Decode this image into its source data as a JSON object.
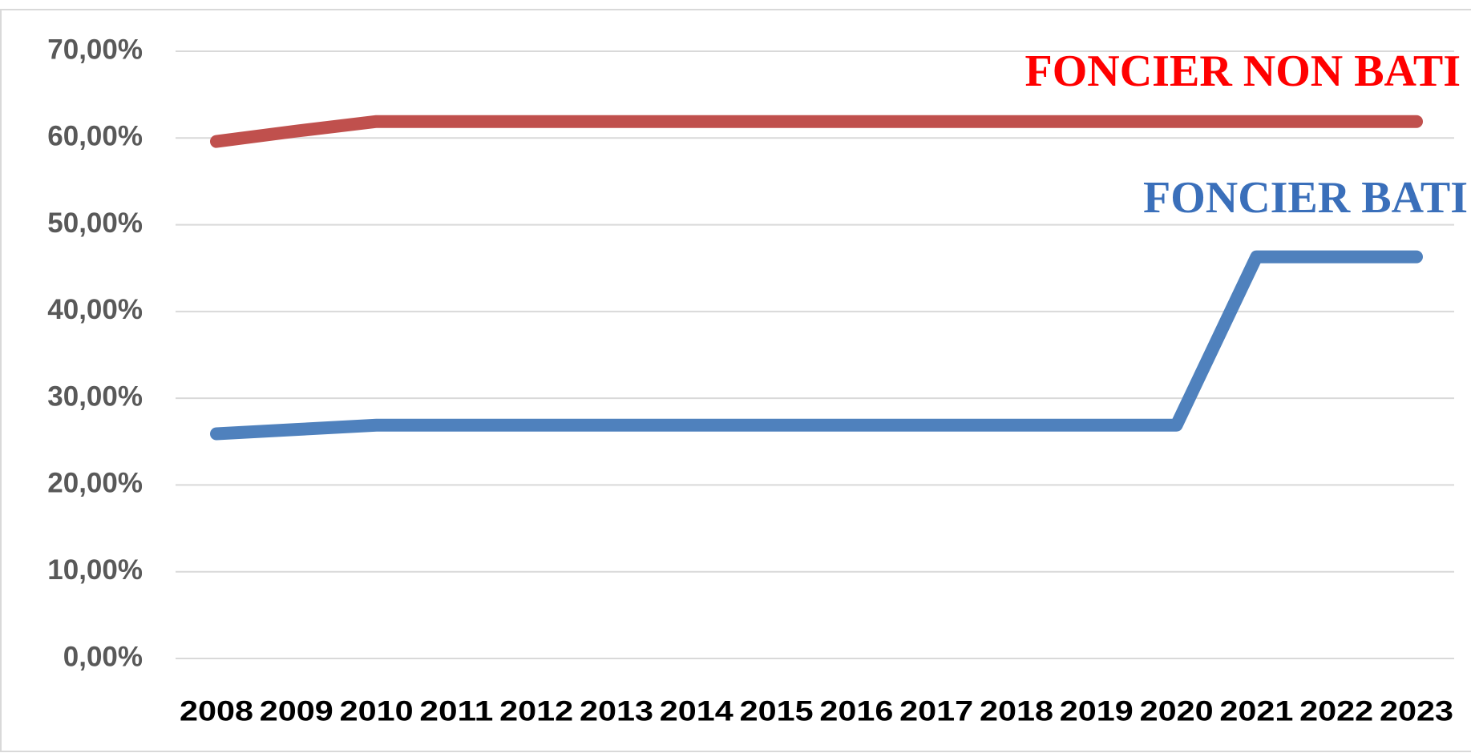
{
  "chart_data": {
    "type": "line",
    "categories": [
      "2008",
      "2009",
      "2010",
      "2011",
      "2012",
      "2013",
      "2014",
      "2015",
      "2016",
      "2017",
      "2018",
      "2019",
      "2020",
      "2021",
      "2022",
      "2023"
    ],
    "series": [
      {
        "name": "FONCIER NON BATI",
        "color": "#c0504d",
        "label_color": "#ff0000",
        "values": [
          59.6,
          60.8,
          61.9,
          61.9,
          61.9,
          61.9,
          61.9,
          61.9,
          61.9,
          61.9,
          61.9,
          61.9,
          61.9,
          61.9,
          61.9,
          61.9
        ]
      },
      {
        "name": "FONCIER BATI",
        "color": "#4f81bd",
        "label_color": "#3a6fba",
        "values": [
          25.9,
          26.4,
          26.9,
          26.9,
          26.9,
          26.9,
          26.9,
          26.9,
          26.9,
          26.9,
          26.9,
          26.9,
          26.9,
          46.3,
          46.3,
          46.3
        ]
      }
    ],
    "ylim": [
      0,
      70
    ],
    "yticks": [
      {
        "value": 0,
        "label": "0,00%"
      },
      {
        "value": 10,
        "label": "10,00%"
      },
      {
        "value": 20,
        "label": "20,00%"
      },
      {
        "value": 30,
        "label": "30,00%"
      },
      {
        "value": 40,
        "label": "40,00%"
      },
      {
        "value": 50,
        "label": "50,00%"
      },
      {
        "value": 60,
        "label": "60,00%"
      },
      {
        "value": 70,
        "label": "70,00%"
      }
    ],
    "grid": true
  }
}
